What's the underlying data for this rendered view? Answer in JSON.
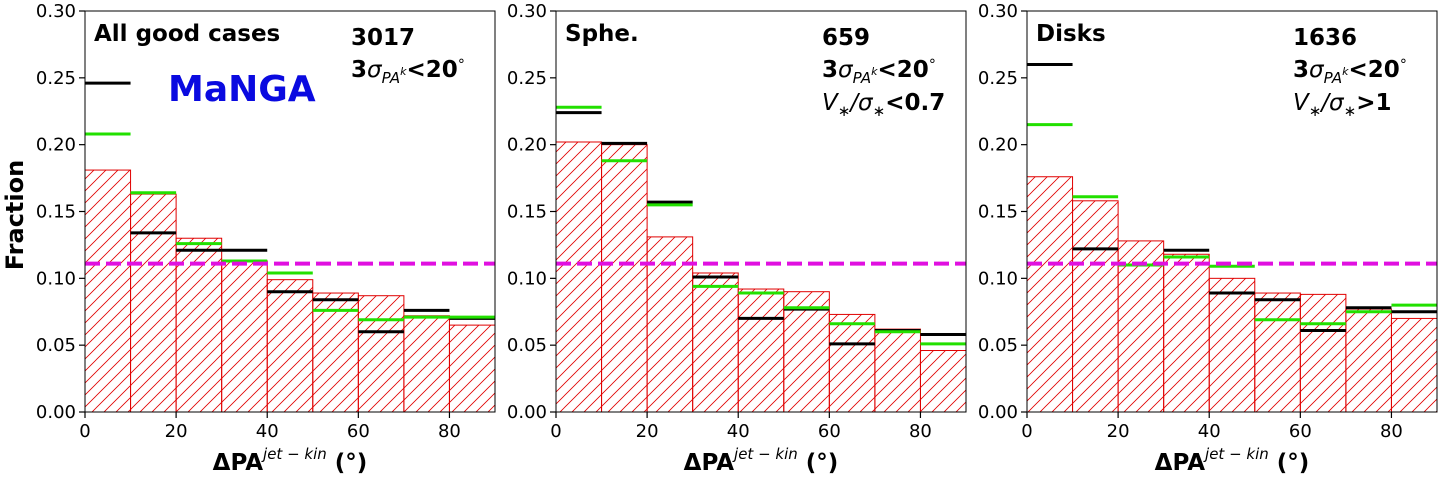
{
  "figure": {
    "ylabel": "Fraction",
    "xlabel_main": "ΔPA",
    "xlabel_sup": "jet − kin",
    "xlabel_unit": " (°)",
    "brand_text": "MaNGA"
  },
  "colors": {
    "hist_edge": "#e00000",
    "black_line": "#000000",
    "green_line": "#22e000",
    "uniform_line": "#e010e0",
    "brand": "#0a0ae0"
  },
  "chart_data": [
    {
      "type": "bar",
      "panel_label": "All good cases",
      "count": "3017",
      "cut_lines": [
        {
          "pre": "3σ",
          "sub": "PA",
          "subsup": "k",
          "post": "<20",
          "deg": "°"
        }
      ],
      "xlim": [
        0,
        90
      ],
      "ylim": [
        0,
        0.3
      ],
      "bin_edges": [
        0,
        10,
        20,
        30,
        40,
        50,
        60,
        70,
        80,
        90
      ],
      "xticks": [
        0,
        20,
        40,
        60,
        80
      ],
      "yticks": [
        "0.00",
        "0.05",
        "0.10",
        "0.15",
        "0.20",
        "0.25",
        "0.30"
      ],
      "histogram": [
        0.181,
        0.163,
        0.13,
        0.113,
        0.099,
        0.089,
        0.087,
        0.072,
        0.065
      ],
      "black_series": [
        0.246,
        0.134,
        0.121,
        0.121,
        0.09,
        0.084,
        0.06,
        0.076,
        0.07
      ],
      "green_series": [
        0.208,
        0.164,
        0.126,
        0.113,
        0.104,
        0.076,
        0.069,
        0.071,
        0.071
      ],
      "uniform_level": 0.111
    },
    {
      "type": "bar",
      "panel_label": "Sphe.",
      "count": "659",
      "cut_lines": [
        {
          "pre": "3σ",
          "sub": "PA",
          "subsup": "k",
          "post": "<20",
          "deg": "°"
        },
        {
          "pre": "V",
          "sub": "∗",
          "mid": "/σ",
          "sub2": "∗",
          "post": "<0.7"
        }
      ],
      "xlim": [
        0,
        90
      ],
      "ylim": [
        0,
        0.3
      ],
      "bin_edges": [
        0,
        10,
        20,
        30,
        40,
        50,
        60,
        70,
        80,
        90
      ],
      "xticks": [
        0,
        20,
        40,
        60,
        80
      ],
      "yticks": [
        "0.00",
        "0.05",
        "0.10",
        "0.15",
        "0.20",
        "0.25",
        "0.30"
      ],
      "histogram": [
        0.202,
        0.2,
        0.131,
        0.104,
        0.092,
        0.09,
        0.073,
        0.062,
        0.046
      ],
      "black_series": [
        0.224,
        0.201,
        0.157,
        0.101,
        0.07,
        0.077,
        0.051,
        0.061,
        0.058
      ],
      "green_series": [
        0.228,
        0.188,
        0.155,
        0.094,
        0.089,
        0.078,
        0.066,
        0.06,
        0.051
      ],
      "uniform_level": 0.111
    },
    {
      "type": "bar",
      "panel_label": "Disks",
      "count": "1636",
      "cut_lines": [
        {
          "pre": "3σ",
          "sub": "PA",
          "subsup": "k",
          "post": "<20",
          "deg": "°"
        },
        {
          "pre": "V",
          "sub": "∗",
          "mid": "/σ",
          "sub2": "∗",
          "post": ">1"
        }
      ],
      "xlim": [
        0,
        90
      ],
      "ylim": [
        0,
        0.3
      ],
      "bin_edges": [
        0,
        10,
        20,
        30,
        40,
        50,
        60,
        70,
        80,
        90
      ],
      "xticks": [
        0,
        20,
        40,
        60,
        80
      ],
      "yticks": [
        "0.00",
        "0.05",
        "0.10",
        "0.15",
        "0.20",
        "0.25",
        "0.30"
      ],
      "histogram": [
        0.176,
        0.158,
        0.128,
        0.118,
        0.1,
        0.089,
        0.088,
        0.077,
        0.07
      ],
      "black_series": [
        0.26,
        0.122,
        0.11,
        0.121,
        0.089,
        0.084,
        0.061,
        0.078,
        0.075
      ],
      "green_series": [
        0.215,
        0.161,
        0.11,
        0.116,
        0.109,
        0.069,
        0.066,
        0.075,
        0.08
      ],
      "uniform_level": 0.111
    }
  ]
}
